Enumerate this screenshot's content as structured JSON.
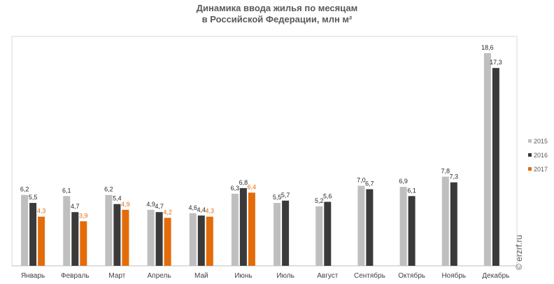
{
  "chart_data": {
    "type": "bar",
    "title_line1": "Динамика ввода жилья по месяцам",
    "title_line2": "в Российской  Федерации, млн м²",
    "categories": [
      "Январь",
      "Февраль",
      "Март",
      "Апрель",
      "Май",
      "Июнь",
      "Июль",
      "Август",
      "Сентябрь",
      "Октябрь",
      "Ноябрь",
      "Декабрь"
    ],
    "series": [
      {
        "name": "2015",
        "color": "#bfbfbf",
        "values": [
          6.2,
          6.1,
          6.2,
          4.9,
          4.6,
          6.3,
          5.5,
          5.2,
          7.0,
          6.9,
          7.8,
          18.6
        ]
      },
      {
        "name": "2016",
        "color": "#3a3a3a",
        "values": [
          5.5,
          4.7,
          5.4,
          4.7,
          4.4,
          6.8,
          5.7,
          5.6,
          6.7,
          6.1,
          7.3,
          17.3
        ]
      },
      {
        "name": "2017",
        "color": "#e36c0a",
        "values": [
          4.3,
          3.9,
          4.9,
          4.2,
          4.3,
          6.4,
          null,
          null,
          null,
          null,
          null,
          null
        ]
      }
    ],
    "value_labels": [
      [
        "6,2",
        "6,1",
        "6,2",
        "4,9",
        "4,6",
        "6,3",
        "5,5",
        "5,2",
        "7,0",
        "6,9",
        "7,8",
        "18,6"
      ],
      [
        "5,5",
        "4,7",
        "5,4",
        "4,7",
        "4,4",
        "6,8",
        "5,7",
        "5,6",
        "6,7",
        "6,1",
        "7,3",
        "17,3"
      ],
      [
        "4,3",
        "3,9",
        "4,9",
        "4,2",
        "4,3",
        "6,4",
        null,
        null,
        null,
        null,
        null,
        null
      ]
    ],
    "ylim": [
      0,
      19
    ],
    "grid": false,
    "legend_position": "right",
    "legend_labels": [
      "2015",
      "2016",
      "2017"
    ]
  },
  "watermark": "© erzrf.ru"
}
